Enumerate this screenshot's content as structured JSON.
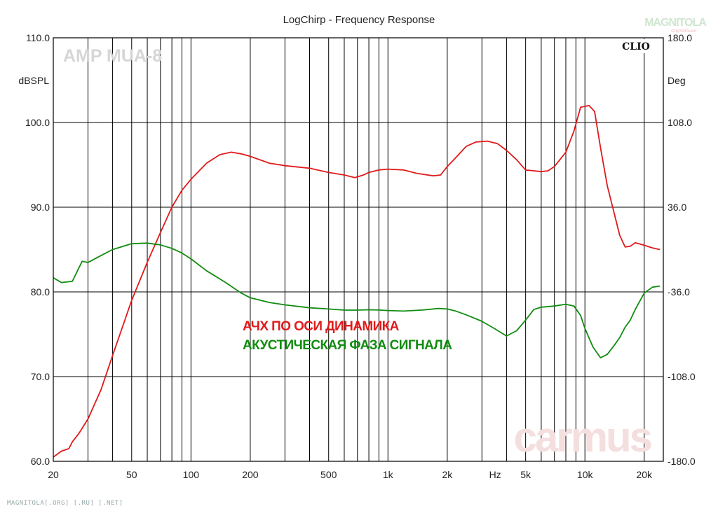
{
  "chart_data": {
    "type": "line",
    "title": "LogChirp - Frequency Response",
    "watermark_model": "AMP MUA-8",
    "brand_clio": "CLIO",
    "brand_logo": "MAGNITOLA",
    "brand_logo_sub": "ChipVidTeam",
    "watermark_carmus": "carmus",
    "footer": "MAGNITOLA[.ORG] [.RU] [.NET]",
    "x_scale": "log",
    "xlim": [
      20,
      25000
    ],
    "x_unit_label": "Hz",
    "x_ticks": [
      {
        "value": 20,
        "label": "20"
      },
      {
        "value": 50,
        "label": "50"
      },
      {
        "value": 100,
        "label": "100"
      },
      {
        "value": 200,
        "label": "200"
      },
      {
        "value": 500,
        "label": "500"
      },
      {
        "value": 1000,
        "label": "1k"
      },
      {
        "value": 2000,
        "label": "2k"
      },
      {
        "value": 5000,
        "label": "5k"
      },
      {
        "value": 10000,
        "label": "10k"
      },
      {
        "value": 20000,
        "label": "20k"
      }
    ],
    "x_unit_at": 3500,
    "y_left": {
      "label": "dBSPL",
      "lim": [
        60,
        110
      ],
      "ticks": [
        {
          "value": 110,
          "label": "110.0"
        },
        {
          "value": 100,
          "label": "100.0"
        },
        {
          "value": 90,
          "label": "90.0"
        },
        {
          "value": 80,
          "label": "80.0"
        },
        {
          "value": 70,
          "label": "70.0"
        },
        {
          "value": 60,
          "label": "60.0"
        }
      ]
    },
    "y_right": {
      "label": "Deg",
      "lim": [
        -180,
        180
      ],
      "ticks": [
        {
          "value": 180,
          "label": "180.0"
        },
        {
          "value": 108,
          "label": "108.0"
        },
        {
          "value": 36,
          "label": "36.0"
        },
        {
          "value": -36,
          "label": "-36.0"
        },
        {
          "value": -108,
          "label": "-108.0"
        },
        {
          "value": -180,
          "label": "-180.0"
        }
      ]
    },
    "grid": true,
    "series": [
      {
        "name": "АЧХ ПО ОСИ ДИНАМИКА",
        "axis": "left",
        "color": "#e01b1b",
        "points": [
          [
            20,
            60.5
          ],
          [
            22,
            61.2
          ],
          [
            24,
            61.5
          ],
          [
            25,
            62.3
          ],
          [
            27,
            63.3
          ],
          [
            30,
            65
          ],
          [
            35,
            68.5
          ],
          [
            40,
            72.5
          ],
          [
            50,
            79
          ],
          [
            60,
            83.5
          ],
          [
            70,
            87
          ],
          [
            80,
            90
          ],
          [
            90,
            92
          ],
          [
            100,
            93.3
          ],
          [
            120,
            95.2
          ],
          [
            140,
            96.2
          ],
          [
            160,
            96.5
          ],
          [
            180,
            96.3
          ],
          [
            200,
            96
          ],
          [
            250,
            95.2
          ],
          [
            300,
            94.9
          ],
          [
            400,
            94.6
          ],
          [
            500,
            94.1
          ],
          [
            600,
            93.8
          ],
          [
            680,
            93.5
          ],
          [
            750,
            93.8
          ],
          [
            800,
            94.1
          ],
          [
            900,
            94.4
          ],
          [
            1000,
            94.5
          ],
          [
            1200,
            94.4
          ],
          [
            1400,
            94
          ],
          [
            1700,
            93.7
          ],
          [
            1850,
            93.8
          ],
          [
            2000,
            94.8
          ],
          [
            2200,
            95.8
          ],
          [
            2500,
            97.2
          ],
          [
            2800,
            97.7
          ],
          [
            3200,
            97.8
          ],
          [
            3600,
            97.5
          ],
          [
            4000,
            96.7
          ],
          [
            4500,
            95.6
          ],
          [
            5000,
            94.4
          ],
          [
            5500,
            94.3
          ],
          [
            6000,
            94.2
          ],
          [
            6500,
            94.3
          ],
          [
            7000,
            94.8
          ],
          [
            8000,
            96.5
          ],
          [
            8800,
            99
          ],
          [
            9500,
            101.8
          ],
          [
            10500,
            102
          ],
          [
            11200,
            101.3
          ],
          [
            12000,
            97
          ],
          [
            13000,
            92.5
          ],
          [
            14000,
            89.5
          ],
          [
            15000,
            86.7
          ],
          [
            16000,
            85.3
          ],
          [
            17000,
            85.4
          ],
          [
            18000,
            85.8
          ],
          [
            20000,
            85.5
          ],
          [
            22000,
            85.2
          ],
          [
            24000,
            85
          ]
        ]
      },
      {
        "name": "АКУСТИЧЕСКАЯ ФАЗА СИГНАЛА",
        "axis": "right",
        "color": "#118c11",
        "points": [
          [
            20,
            -24
          ],
          [
            22,
            -28
          ],
          [
            25,
            -27
          ],
          [
            28,
            -10
          ],
          [
            30,
            -11
          ],
          [
            35,
            -5
          ],
          [
            40,
            0
          ],
          [
            50,
            5
          ],
          [
            60,
            5.5
          ],
          [
            70,
            4
          ],
          [
            80,
            1
          ],
          [
            90,
            -3
          ],
          [
            100,
            -8
          ],
          [
            120,
            -18
          ],
          [
            150,
            -28
          ],
          [
            180,
            -37
          ],
          [
            200,
            -41
          ],
          [
            250,
            -45
          ],
          [
            300,
            -47
          ],
          [
            400,
            -49.5
          ],
          [
            500,
            -50.5
          ],
          [
            600,
            -51.5
          ],
          [
            700,
            -51.5
          ],
          [
            800,
            -51.2
          ],
          [
            900,
            -51.4
          ],
          [
            1000,
            -51.8
          ],
          [
            1200,
            -52.3
          ],
          [
            1500,
            -51.4
          ],
          [
            1800,
            -50.1
          ],
          [
            2000,
            -50.5
          ],
          [
            2200,
            -52.2
          ],
          [
            2500,
            -55.5
          ],
          [
            3000,
            -61
          ],
          [
            3500,
            -67.5
          ],
          [
            4000,
            -73.5
          ],
          [
            4500,
            -69
          ],
          [
            5000,
            -60
          ],
          [
            5500,
            -51
          ],
          [
            6000,
            -49
          ],
          [
            7000,
            -48
          ],
          [
            8000,
            -46.5
          ],
          [
            8800,
            -48
          ],
          [
            9500,
            -56
          ],
          [
            10000,
            -67
          ],
          [
            11000,
            -83
          ],
          [
            12000,
            -92
          ],
          [
            13000,
            -89
          ],
          [
            14000,
            -82
          ],
          [
            15000,
            -75
          ],
          [
            16000,
            -66
          ],
          [
            17000,
            -60
          ],
          [
            18000,
            -51
          ],
          [
            20000,
            -37
          ],
          [
            22000,
            -32
          ],
          [
            24000,
            -31
          ]
        ]
      }
    ]
  }
}
